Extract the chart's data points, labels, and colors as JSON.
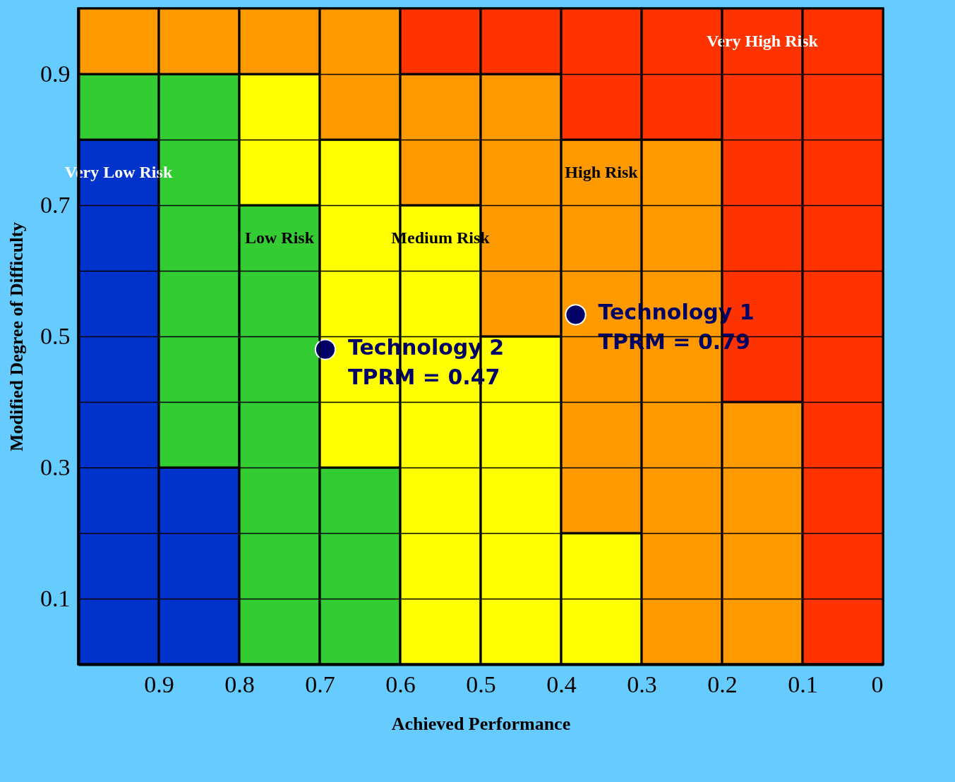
{
  "chart_data": {
    "type": "bar",
    "stacked": true,
    "xlabel": "Achieved Performance",
    "ylabel": "Modified Degree of Difficulty",
    "xlim": [
      1,
      0
    ],
    "ylim": [
      0,
      1
    ],
    "xticks": [
      0.9,
      0.8,
      0.7,
      0.6,
      0.5,
      0.4,
      0.3,
      0.2,
      0.1,
      0
    ],
    "yticks": [
      0.1,
      {
        "value": 0.2,
        "label": null
      },
      0.3,
      {
        "value": 0.4,
        "label": null
      },
      0.5,
      {
        "value": 0.6,
        "label": null
      },
      0.7,
      {
        "value": 0.8,
        "label": null
      },
      0.9
    ],
    "grid": true,
    "x": [
      0.95,
      0.85,
      0.75,
      0.65,
      0.55,
      0.45,
      0.35,
      0.25,
      0.15,
      0.05
    ],
    "series": [
      {
        "name": "Very Low Risk",
        "color": "#0033cc",
        "values": [
          0.8,
          0.3,
          null,
          null,
          null,
          null,
          null,
          null,
          null,
          null
        ]
      },
      {
        "name": "Low Risk",
        "color": "#33cc33",
        "values": [
          0.1,
          0.6,
          0.7,
          0.3,
          null,
          null,
          null,
          null,
          null,
          null
        ]
      },
      {
        "name": "Medium Risk",
        "color": "#ffff00",
        "values": [
          null,
          null,
          0.2,
          0.5,
          0.7,
          0.5,
          0.2,
          null,
          null,
          null
        ]
      },
      {
        "name": "High Risk",
        "color": "#ff9900",
        "values": [
          0.1,
          0.1,
          0.1,
          0.2,
          0.2,
          0.4,
          0.6,
          0.8,
          0.4,
          null
        ]
      },
      {
        "name": "Very High Risk",
        "color": "#ff3300",
        "values": [
          null,
          null,
          null,
          null,
          0.1,
          0.1,
          0.2,
          0.2,
          0.6,
          1.0
        ]
      },
      {
        "type": "scatter",
        "name": "Technology 1",
        "color": "#000066",
        "x": [
          0.382
        ],
        "values": [
          0.533
        ]
      },
      {
        "type": "scatter",
        "name": "Technology 2",
        "color": "#000066",
        "x": [
          0.693
        ],
        "values": [
          0.48
        ]
      }
    ],
    "annotations": [
      {
        "text": "TPRM = 0.79",
        "x": 0.382,
        "y": 0.533
      },
      {
        "text": "TPRM = 0.47",
        "x": 0.693,
        "y": 0.48
      }
    ]
  }
}
